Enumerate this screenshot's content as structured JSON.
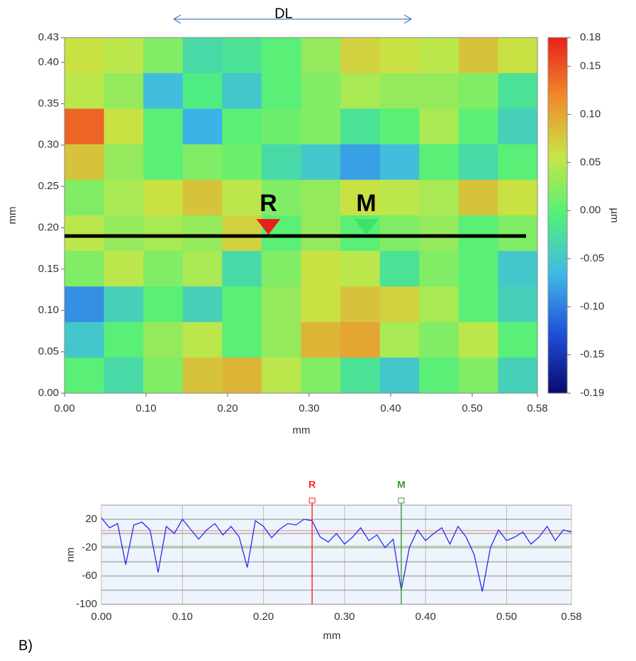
{
  "chart_data": [
    {
      "type": "heatmap",
      "title": "DL",
      "xlabel": "mm",
      "ylabel": "mm",
      "colorbar_label": "µm",
      "xlim": [
        0,
        0.58
      ],
      "ylim": [
        0,
        0.43
      ],
      "xticks": [
        {
          "value": 0,
          "label": "0.00"
        },
        {
          "value": 0.1,
          "label": "0.10"
        },
        {
          "value": 0.2,
          "label": "0.20"
        },
        {
          "value": 0.3,
          "label": "0.30"
        },
        {
          "value": 0.4,
          "label": "0.40"
        },
        {
          "value": 0.5,
          "label": "0.50"
        },
        0.58
      ],
      "yticks": [
        {
          "value": 0,
          "label": "0.00"
        },
        0.05,
        {
          "value": 0.1,
          "label": "0.10"
        },
        0.15,
        {
          "value": 0.2,
          "label": "0.20"
        },
        0.25,
        {
          "value": 0.3,
          "label": "0.30"
        },
        0.35,
        {
          "value": 0.4,
          "label": "0.40"
        },
        0.43
      ],
      "clim": [
        -0.19,
        0.18
      ],
      "cticks": [
        0.18,
        0.15,
        {
          "value": 0.1,
          "label": "0.10"
        },
        0.05,
        {
          "value": 0,
          "label": "0.00"
        },
        -0.05,
        {
          "value": -0.1,
          "label": "-0.10"
        },
        -0.15,
        -0.19
      ],
      "colormap": [
        "#0a0a6e",
        "#1f4fd8",
        "#3fb8e8",
        "#50f07a",
        "#c8e646",
        "#f08a2a",
        "#e8201a"
      ],
      "z": [
        [
          0.06,
          0.05,
          0.02,
          -0.03,
          -0.02,
          0.0,
          0.03,
          0.07,
          0.06,
          0.05,
          0.08,
          0.06
        ],
        [
          0.05,
          0.03,
          -0.06,
          -0.01,
          -0.05,
          0.0,
          0.02,
          0.04,
          0.03,
          0.03,
          0.02,
          -0.02
        ],
        [
          0.14,
          0.06,
          0.0,
          -0.07,
          0.0,
          0.01,
          0.02,
          -0.02,
          0.0,
          0.04,
          0.0,
          -0.04
        ],
        [
          0.08,
          0.03,
          0.0,
          0.02,
          0.01,
          -0.03,
          -0.05,
          -0.08,
          -0.06,
          0.0,
          -0.03,
          0.0
        ],
        [
          0.02,
          0.04,
          0.06,
          0.08,
          0.05,
          0.02,
          0.03,
          0.06,
          0.05,
          0.04,
          0.08,
          0.06
        ],
        [
          0.05,
          0.03,
          0.04,
          0.03,
          0.07,
          0.0,
          0.03,
          0.0,
          0.02,
          0.03,
          0.0,
          0.02
        ],
        [
          0.02,
          0.05,
          0.02,
          0.04,
          -0.03,
          0.02,
          0.06,
          0.05,
          -0.02,
          0.02,
          0.0,
          -0.05
        ],
        [
          -0.09,
          -0.04,
          0.0,
          -0.04,
          0.0,
          0.03,
          0.06,
          0.08,
          0.07,
          0.04,
          0.0,
          -0.04
        ],
        [
          -0.05,
          0.0,
          0.03,
          0.05,
          0.0,
          0.03,
          0.09,
          0.1,
          0.04,
          0.02,
          0.05,
          0.0
        ],
        [
          0.0,
          -0.03,
          0.02,
          0.08,
          0.09,
          0.05,
          0.02,
          -0.02,
          -0.05,
          0.0,
          0.02,
          -0.04
        ]
      ],
      "profile_y": 0.19,
      "markers": [
        {
          "label": "R",
          "x": 0.25,
          "color": "#e8201a"
        },
        {
          "label": "M",
          "x": 0.37,
          "color": "#3be36a"
        }
      ]
    },
    {
      "type": "line",
      "panel_label": "B)",
      "xlabel": "mm",
      "ylabel": "nm",
      "xlim": [
        0,
        0.58
      ],
      "ylim": [
        -100,
        40
      ],
      "xticks": [
        {
          "value": 0,
          "label": "0.00"
        },
        {
          "value": 0.1,
          "label": "0.10"
        },
        {
          "value": 0.2,
          "label": "0.20"
        },
        {
          "value": 0.3,
          "label": "0.30"
        },
        {
          "value": 0.4,
          "label": "0.40"
        },
        {
          "value": 0.5,
          "label": "0.50"
        },
        0.58
      ],
      "yticks": [
        20,
        -20,
        -60,
        -100
      ],
      "y_gridlines": [
        0,
        -40,
        -80
      ],
      "grid": true,
      "x": [
        0,
        0.01,
        0.02,
        0.03,
        0.04,
        0.05,
        0.06,
        0.07,
        0.08,
        0.09,
        0.1,
        0.11,
        0.12,
        0.13,
        0.14,
        0.15,
        0.16,
        0.17,
        0.18,
        0.19,
        0.2,
        0.21,
        0.22,
        0.23,
        0.24,
        0.25,
        0.26,
        0.27,
        0.28,
        0.29,
        0.3,
        0.31,
        0.32,
        0.33,
        0.34,
        0.35,
        0.36,
        0.37,
        0.38,
        0.39,
        0.4,
        0.41,
        0.42,
        0.43,
        0.44,
        0.45,
        0.46,
        0.47,
        0.48,
        0.49,
        0.5,
        0.51,
        0.52,
        0.53,
        0.54,
        0.55,
        0.56,
        0.57,
        0.58
      ],
      "series": [
        {
          "color": "#2a2af0",
          "values": [
            22,
            8,
            14,
            -44,
            12,
            16,
            5,
            -55,
            10,
            0,
            20,
            6,
            -8,
            5,
            14,
            -2,
            10,
            -5,
            -48,
            18,
            10,
            -6,
            6,
            14,
            12,
            20,
            18,
            -5,
            -12,
            0,
            -15,
            -5,
            8,
            -10,
            -2,
            -20,
            -8,
            -80,
            -20,
            5,
            -10,
            0,
            8,
            -15,
            10,
            -5,
            -30,
            -82,
            -20,
            5,
            -10,
            -5,
            2,
            -15,
            -5,
            10,
            -10,
            5,
            2
          ]
        }
      ],
      "reference_lines": [
        {
          "y": 4,
          "color": "#f08080"
        },
        {
          "y": -18,
          "color": "#7fbf7f"
        }
      ],
      "cursors": [
        {
          "label": "R",
          "x": 0.26,
          "color": "#ff2020"
        },
        {
          "label": "M",
          "x": 0.37,
          "color": "#3a9a3a"
        }
      ]
    }
  ]
}
